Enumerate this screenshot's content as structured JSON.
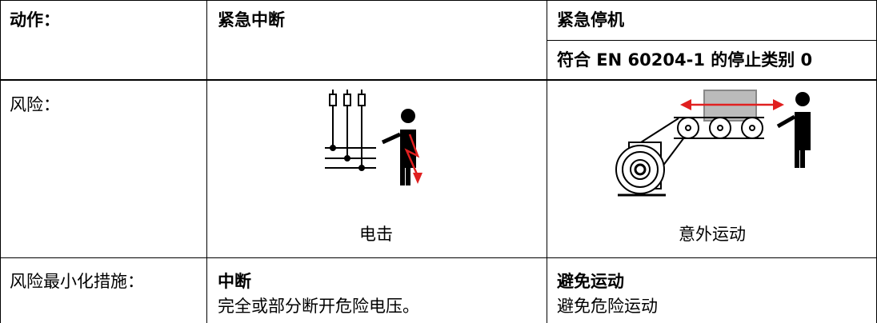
{
  "table": {
    "header": {
      "label": "动作：",
      "col2": "紧急中断",
      "col3": "紧急停机",
      "col3_sub": "符合 EN 60204-1 的停止类别 0"
    },
    "risk": {
      "label": "风险：",
      "col2_caption": "电击",
      "col3_caption": "意外运动"
    },
    "measures": {
      "label": "风险最小化措施：",
      "col2_title": "中断",
      "col2_text": "完全或部分断开危险电压。",
      "col3_title": "避免运动",
      "col3_text": "避免危险运动"
    }
  }
}
